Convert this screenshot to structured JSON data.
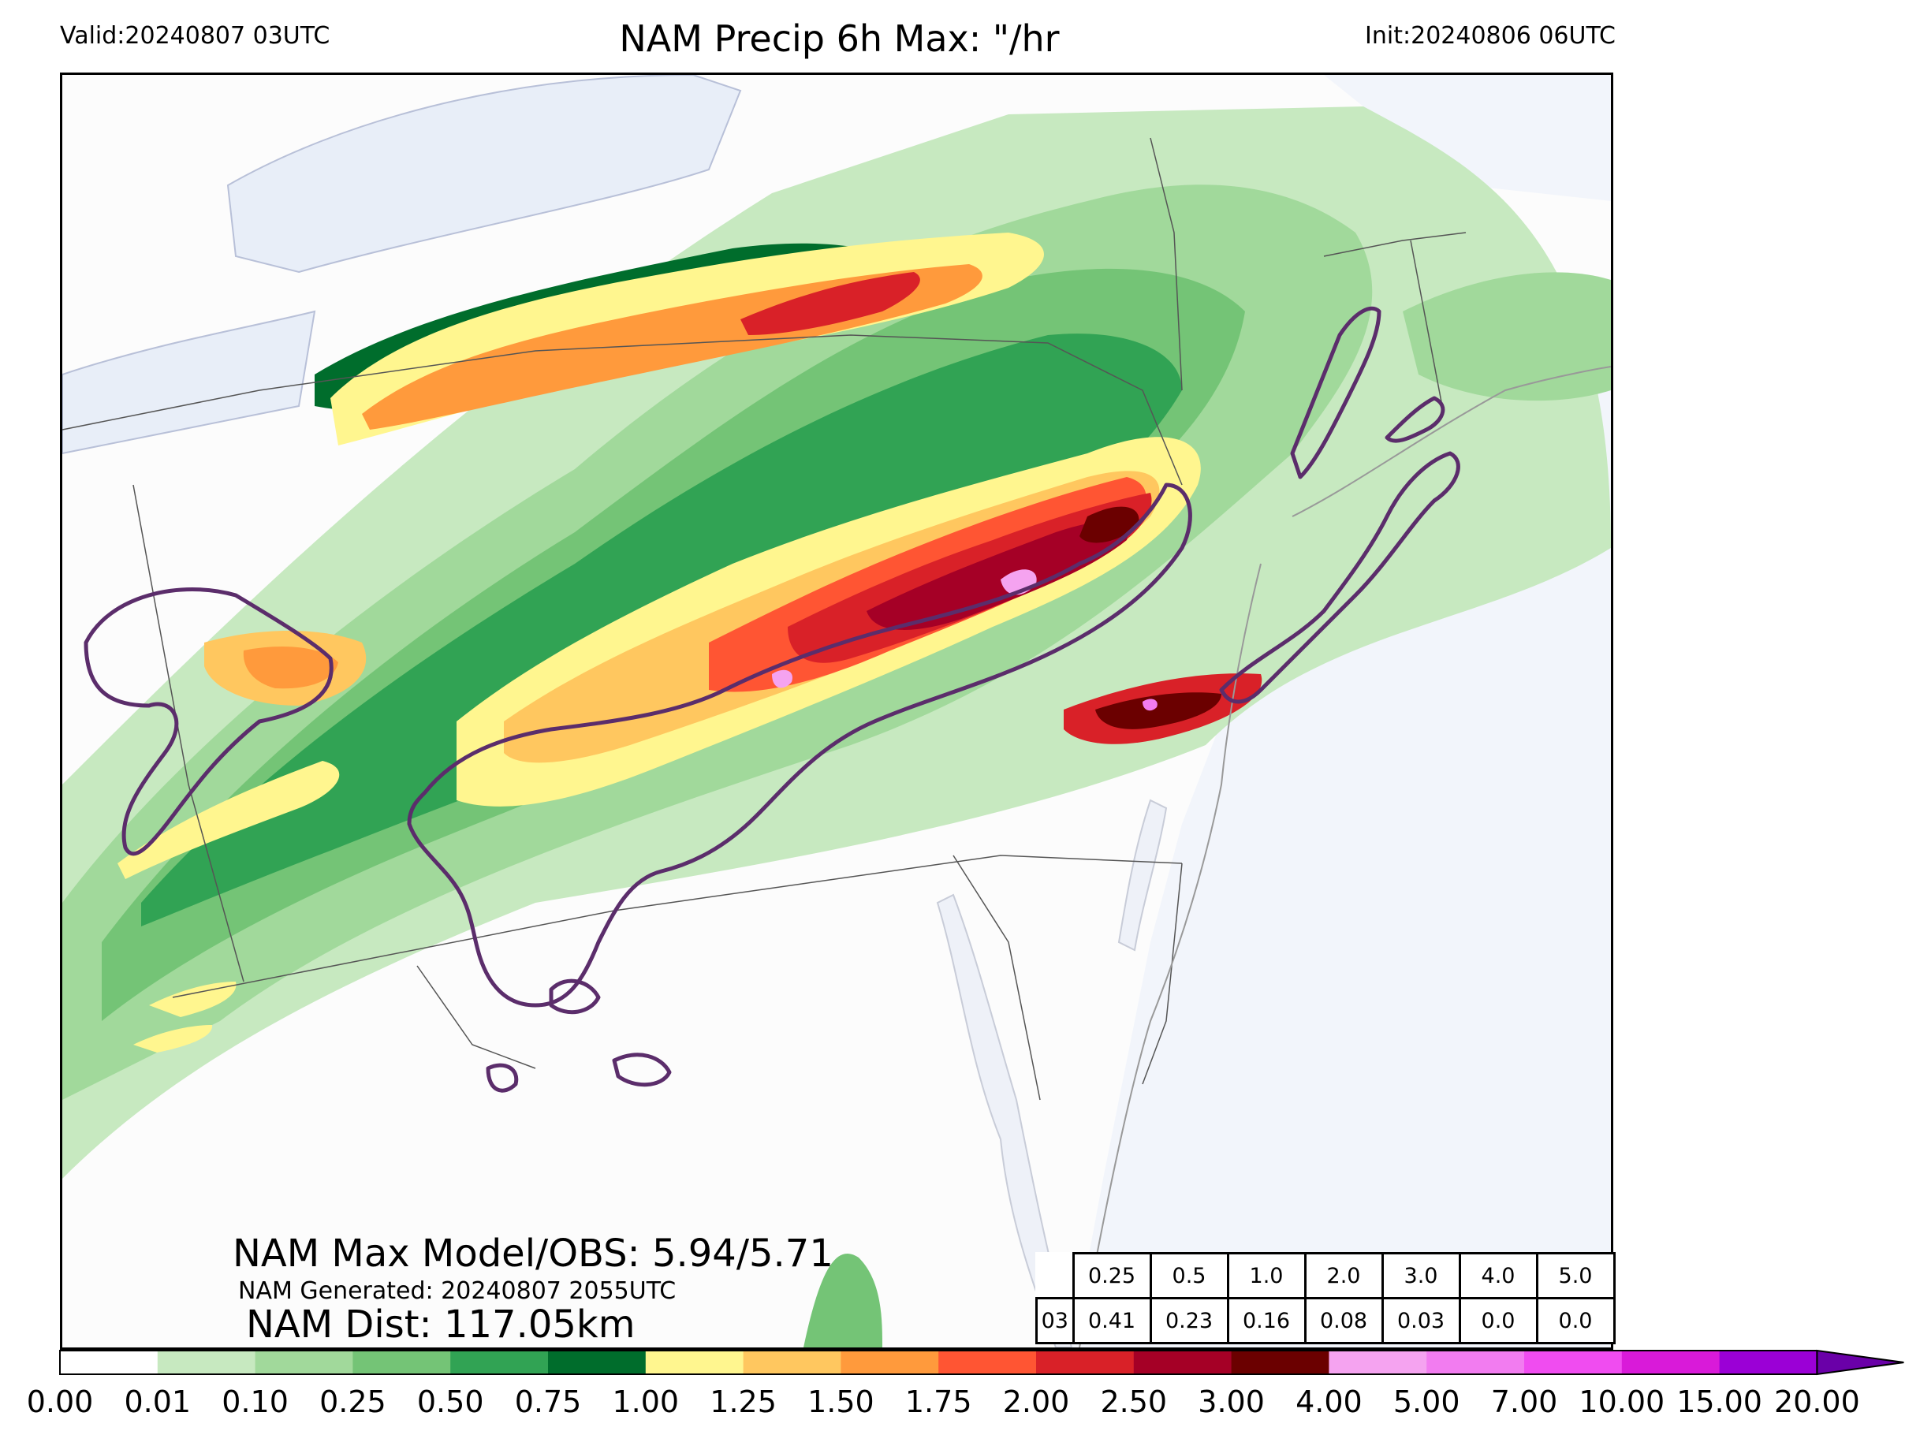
{
  "header": {
    "valid": "Valid:20240807 03UTC",
    "title": "NAM Precip 6h Max: \"/hr",
    "init": "Init:20240806 06UTC"
  },
  "stats": {
    "max_obs": "NAM Max Model/OBS: 5.94/5.71",
    "generated": "NAM Generated: 20240807 2055UTC",
    "distance": "NAM Dist: 117.05km"
  },
  "threshold_table": {
    "thresholds": [
      "0.25",
      "0.5",
      "1.0",
      "2.0",
      "3.0",
      "4.0",
      "5.0"
    ],
    "row_label": "03",
    "values": [
      "0.41",
      "0.23",
      "0.16",
      "0.08",
      "0.03",
      "0.0",
      "0.0"
    ]
  },
  "colorbar": {
    "ticks": [
      "0.00",
      "0.01",
      "0.10",
      "0.25",
      "0.50",
      "0.75",
      "1.00",
      "1.25",
      "1.50",
      "1.75",
      "2.00",
      "2.50",
      "3.00",
      "4.00",
      "5.00",
      "7.00",
      "10.00",
      "15.00",
      "20.00"
    ],
    "colors": [
      "#ffffff",
      "#c7e9c0",
      "#a1d99b",
      "#74c476",
      "#31a354",
      "#006d2c",
      "#fff68f",
      "#ffc75f",
      "#ff9a3c",
      "#ff5533",
      "#d92128",
      "#a50026",
      "#6b0000",
      "#f5a3f0",
      "#f27cf0",
      "#f04cf0",
      "#d91ad9",
      "#9b00d6"
    ],
    "extend_color": "#6a00a8"
  },
  "colors": {
    "ocean": "#f2f5fb",
    "land": "#fcfcfc",
    "obs_contour": "#5b2d6b"
  }
}
